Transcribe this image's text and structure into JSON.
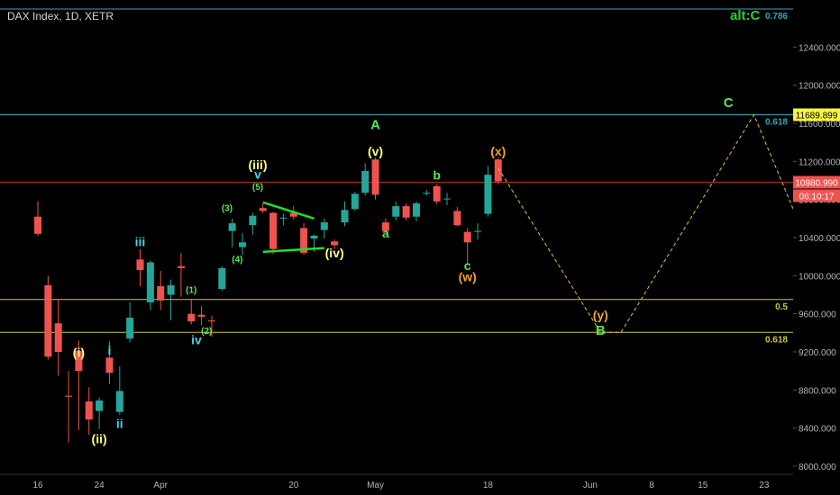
{
  "header": {
    "symbol_title": "DAX Index, 1D, XETR"
  },
  "alt_label": "alt:C",
  "colors": {
    "background": "#000000",
    "up": "#26a69a",
    "down": "#ef5350",
    "wave_yellow": "#fdfd7a",
    "wave_cyan": "#4dd0e1",
    "wave_green": "#5ee35e",
    "wave_orange": "#f0a030",
    "projection": "#e6c229",
    "fib_cyan": "#2fa8b8",
    "fib_yellow": "#c8c838",
    "price_red": "#c0392b",
    "axis_text": "#b2b5be"
  },
  "chart_data": {
    "type": "candlestick",
    "title": "DAX Index, 1D, XETR",
    "ylim": [
      8000,
      12800
    ],
    "price_ticks": [
      12400,
      12000,
      11600,
      11200,
      10800,
      10400,
      10000,
      9600,
      9200,
      8800,
      8400,
      8000
    ],
    "price_tick_labels": [
      "12400.000",
      "12000.000",
      "11600.000",
      "11200.000",
      "10800.000",
      "10400.000",
      "10000.000",
      "9600.000",
      "9200.000",
      "8800.000",
      "8400.000",
      "8000.000"
    ],
    "time_ticks": [
      {
        "label": "16",
        "bar": 0
      },
      {
        "label": "24",
        "bar": 6
      },
      {
        "label": "Apr",
        "bar": 12
      },
      {
        "label": "20",
        "bar": 25
      },
      {
        "label": "May",
        "bar": 33
      },
      {
        "label": "18",
        "bar": 44
      },
      {
        "label": "Jun",
        "bar": 54
      },
      {
        "label": "8",
        "bar": 60
      },
      {
        "label": "15",
        "bar": 65
      },
      {
        "label": "23",
        "bar": 71
      }
    ],
    "candles": [
      {
        "o": 10620,
        "h": 10780,
        "l": 10420,
        "c": 10440
      },
      {
        "o": 9900,
        "h": 10000,
        "l": 9120,
        "c": 9150
      },
      {
        "o": 9500,
        "h": 9750,
        "l": 8950,
        "c": 9200
      },
      {
        "o": 8740,
        "h": 9000,
        "l": 8250,
        "c": 8730
      },
      {
        "o": 9210,
        "h": 9320,
        "l": 8380,
        "c": 9000
      },
      {
        "o": 8680,
        "h": 8830,
        "l": 8330,
        "c": 8490
      },
      {
        "o": 8580,
        "h": 8720,
        "l": 8390,
        "c": 8690
      },
      {
        "o": 9140,
        "h": 9310,
        "l": 8860,
        "c": 8980
      },
      {
        "o": 8570,
        "h": 9050,
        "l": 8540,
        "c": 8790
      },
      {
        "o": 9340,
        "h": 9720,
        "l": 9300,
        "c": 9560
      },
      {
        "o": 10170,
        "h": 10280,
        "l": 9890,
        "c": 10060
      },
      {
        "o": 9720,
        "h": 10160,
        "l": 9640,
        "c": 10140
      },
      {
        "o": 9890,
        "h": 10050,
        "l": 9640,
        "c": 9740
      },
      {
        "o": 9800,
        "h": 9960,
        "l": 9530,
        "c": 9900
      },
      {
        "o": 10100,
        "h": 10240,
        "l": 9780,
        "c": 10080
      },
      {
        "o": 9600,
        "h": 9760,
        "l": 9490,
        "c": 9520
      },
      {
        "o": 9590,
        "h": 9680,
        "l": 9480,
        "c": 9570
      },
      {
        "o": 9530,
        "h": 9580,
        "l": 9360,
        "c": 9520
      },
      {
        "o": 9860,
        "h": 10100,
        "l": 9840,
        "c": 10080
      },
      {
        "o": 10470,
        "h": 10600,
        "l": 10300,
        "c": 10550
      },
      {
        "o": 10300,
        "h": 10450,
        "l": 10220,
        "c": 10350
      },
      {
        "o": 10530,
        "h": 10660,
        "l": 10430,
        "c": 10630
      },
      {
        "o": 10710,
        "h": 10760,
        "l": 10660,
        "c": 10680
      },
      {
        "o": 10660,
        "h": 10670,
        "l": 10230,
        "c": 10280
      },
      {
        "o": 10600,
        "h": 10650,
        "l": 10530,
        "c": 10610
      },
      {
        "o": 10660,
        "h": 10730,
        "l": 10590,
        "c": 10620
      },
      {
        "o": 10500,
        "h": 10550,
        "l": 10220,
        "c": 10240
      },
      {
        "o": 10390,
        "h": 10430,
        "l": 10250,
        "c": 10420
      },
      {
        "o": 10480,
        "h": 10600,
        "l": 10390,
        "c": 10560
      },
      {
        "o": 10360,
        "h": 10380,
        "l": 10280,
        "c": 10320
      },
      {
        "o": 10560,
        "h": 10780,
        "l": 10520,
        "c": 10690
      },
      {
        "o": 10700,
        "h": 10880,
        "l": 10680,
        "c": 10860
      },
      {
        "o": 10870,
        "h": 11180,
        "l": 10840,
        "c": 11100
      },
      {
        "o": 11220,
        "h": 11240,
        "l": 10800,
        "c": 10850
      },
      {
        "o": 10560,
        "h": 10600,
        "l": 10440,
        "c": 10470
      },
      {
        "o": 10620,
        "h": 10780,
        "l": 10580,
        "c": 10730
      },
      {
        "o": 10730,
        "h": 10760,
        "l": 10580,
        "c": 10610
      },
      {
        "o": 10620,
        "h": 10780,
        "l": 10570,
        "c": 10760
      },
      {
        "o": 10860,
        "h": 10900,
        "l": 10840,
        "c": 10870
      },
      {
        "o": 10940,
        "h": 10960,
        "l": 10750,
        "c": 10780
      },
      {
        "o": 10810,
        "h": 10870,
        "l": 10740,
        "c": 10810
      },
      {
        "o": 10680,
        "h": 10720,
        "l": 10520,
        "c": 10530
      },
      {
        "o": 10460,
        "h": 10500,
        "l": 10130,
        "c": 10350
      },
      {
        "o": 10470,
        "h": 10550,
        "l": 10380,
        "c": 10470
      },
      {
        "o": 10650,
        "h": 11150,
        "l": 10620,
        "c": 11060
      },
      {
        "o": 11220,
        "h": 11240,
        "l": 10960,
        "c": 10990
      }
    ],
    "horizontal_levels": [
      {
        "value": 12800,
        "label": "0.786",
        "color": "#2fa8b8"
      },
      {
        "value": 11690,
        "label": "0.618",
        "color": "#2fa8b8"
      },
      {
        "value": 9750,
        "label": "0.5",
        "color": "#c8c838"
      },
      {
        "value": 9405,
        "label": "0.618",
        "color": "#c8c838"
      },
      {
        "value": 10980,
        "label": "",
        "color": "#c0392b"
      }
    ],
    "price_badges": [
      {
        "value": 11689.899,
        "text": "11689.899",
        "bg": "#f5f542",
        "fg": "#000000"
      },
      {
        "value": 10980.99,
        "text": "10980.990",
        "bg": "#ef5350",
        "fg": "#ffffff"
      },
      {
        "value": 10840,
        "text": "06:10:17",
        "bg": "#ef5350",
        "fg": "#ffffff"
      }
    ],
    "projection_path": [
      {
        "bar": 45,
        "price": 11130
      },
      {
        "bar": 55,
        "price": 9405
      },
      {
        "bar": 57,
        "price": 9405
      },
      {
        "bar": 70,
        "price": 11689
      },
      {
        "bar": 75,
        "price": 10400
      }
    ],
    "triangle_lines": [
      [
        {
          "bar": 22,
          "price": 10770
        },
        {
          "bar": 27,
          "price": 10600
        }
      ],
      [
        {
          "bar": 22,
          "price": 10250
        },
        {
          "bar": 28,
          "price": 10290
        }
      ]
    ],
    "wave_labels": [
      {
        "text": "(i)",
        "bar": 4,
        "price": 9150,
        "color": "#fdfd7a",
        "size": 14
      },
      {
        "text": "(ii)",
        "bar": 6,
        "price": 8240,
        "color": "#fdfd7a",
        "size": 14
      },
      {
        "text": "i",
        "bar": 7,
        "price": 9170,
        "color": "#4dd0e1",
        "size": 14
      },
      {
        "text": "ii",
        "bar": 8,
        "price": 8400,
        "color": "#4dd0e1",
        "size": 14
      },
      {
        "text": "iii",
        "bar": 10,
        "price": 10310,
        "color": "#4dd0e1",
        "size": 14
      },
      {
        "text": "(1)",
        "bar": 15,
        "price": 9820,
        "color": "#5ee35e",
        "size": 10
      },
      {
        "text": "(2)",
        "bar": 16.5,
        "price": 9390,
        "color": "#5ee35e",
        "size": 10
      },
      {
        "text": "iv",
        "bar": 15.5,
        "price": 9280,
        "color": "#4dd0e1",
        "size": 14
      },
      {
        "text": "(3)",
        "bar": 18.5,
        "price": 10680,
        "color": "#5ee35e",
        "size": 10
      },
      {
        "text": "(4)",
        "bar": 19.5,
        "price": 10140,
        "color": "#5ee35e",
        "size": 10
      },
      {
        "text": "(5)",
        "bar": 21.5,
        "price": 10900,
        "color": "#5ee35e",
        "size": 10
      },
      {
        "text": "v",
        "bar": 21.5,
        "price": 11020,
        "color": "#4dd0e1",
        "size": 14
      },
      {
        "text": "(iii)",
        "bar": 21.5,
        "price": 11120,
        "color": "#fdfd7a",
        "size": 14
      },
      {
        "text": "(iv)",
        "bar": 29,
        "price": 10190,
        "color": "#fdfd7a",
        "size": 14
      },
      {
        "text": "A",
        "bar": 33,
        "price": 11540,
        "color": "#5ee35e",
        "size": 15
      },
      {
        "text": "(v)",
        "bar": 33,
        "price": 11260,
        "color": "#fdfd7a",
        "size": 14
      },
      {
        "text": "a",
        "bar": 34,
        "price": 10400,
        "color": "#5ee35e",
        "size": 14
      },
      {
        "text": "b",
        "bar": 39,
        "price": 11010,
        "color": "#5ee35e",
        "size": 14
      },
      {
        "text": "c",
        "bar": 42,
        "price": 10060,
        "color": "#5ee35e",
        "size": 14
      },
      {
        "text": "(w)",
        "bar": 42,
        "price": 9940,
        "color": "#f0a030",
        "size": 14
      },
      {
        "text": "(x)",
        "bar": 45,
        "price": 11260,
        "color": "#f0a030",
        "size": 14
      },
      {
        "text": "(y)",
        "bar": 55,
        "price": 9540,
        "color": "#f0a030",
        "size": 14
      },
      {
        "text": "B",
        "bar": 55,
        "price": 9380,
        "color": "#5ee35e",
        "size": 15
      },
      {
        "text": "C",
        "bar": 67.5,
        "price": 11770,
        "color": "#5ee35e",
        "size": 15
      }
    ]
  }
}
